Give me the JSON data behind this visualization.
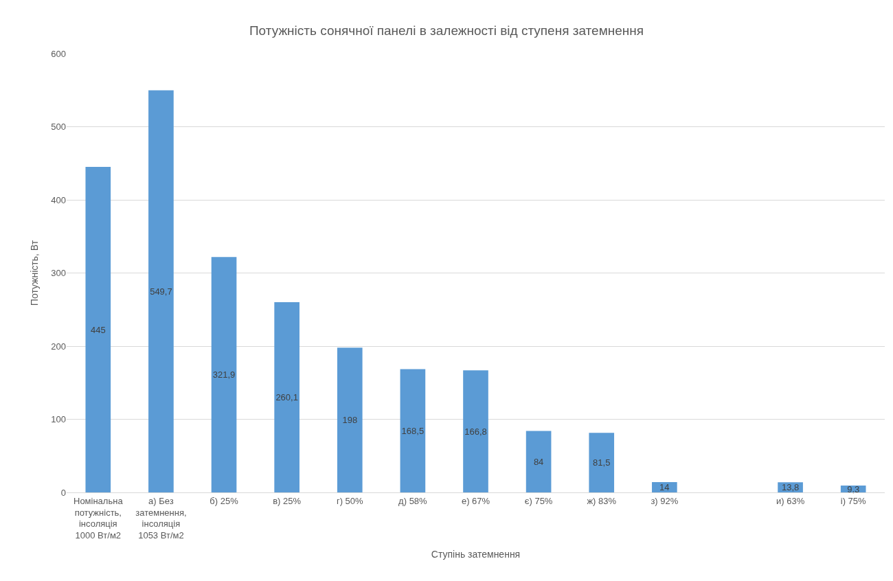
{
  "chart_data": {
    "type": "bar",
    "title": "Потужність сонячної панелі в залежності від ступеня затемнення",
    "xlabel": "Ступінь затемнення",
    "ylabel": "Потужність, Вт",
    "categories": [
      "Номінальна потужність, інсоляція 1000 Вт/м2",
      "а) Без затемнення, інсоляція 1053 Вт/м2",
      "б) 25%",
      "в) 25%",
      "г) 50%",
      "д) 58%",
      "е) 67%",
      "є) 75%",
      "ж) 83%",
      "з) 92%",
      null,
      "и) 63%",
      "і) 75%"
    ],
    "values": [
      445,
      549.7,
      321.9,
      260.1,
      198,
      168.5,
      166.8,
      84,
      81.5,
      14,
      null,
      13.8,
      9.3
    ],
    "value_labels": [
      "445",
      "549,7",
      "321,9",
      "260,1",
      "198",
      "168,5",
      "166,8",
      "84",
      "81,5",
      "14",
      null,
      "13,8",
      "9,3"
    ],
    "color": "#5b9bd5",
    "ylim": [
      0,
      600
    ],
    "yticks": [
      0,
      100,
      200,
      300,
      400,
      500,
      600
    ],
    "grid": "y"
  }
}
